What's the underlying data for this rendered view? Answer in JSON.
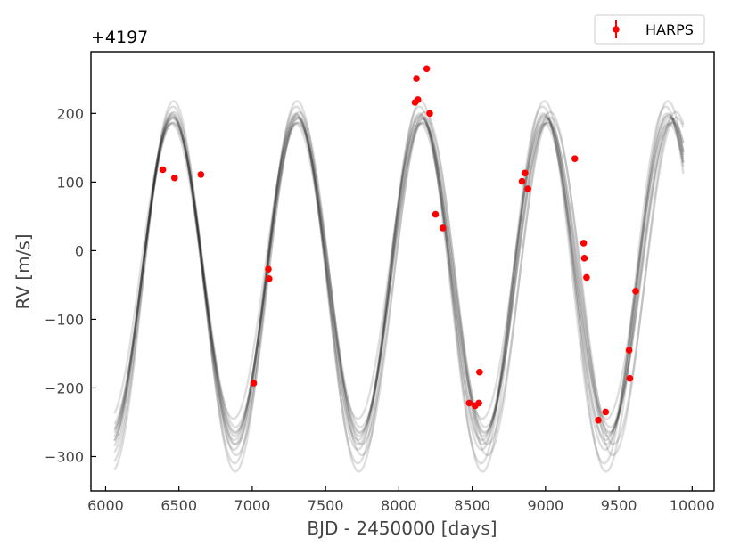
{
  "chart_data": {
    "type": "scatter",
    "offset_label": "+4197",
    "xlabel": "BJD - 2450000 [days]",
    "ylabel": "RV [m/s]",
    "xlim": [
      5900,
      10150
    ],
    "ylim": [
      -350,
      290
    ],
    "x_ticks": [
      6000,
      6500,
      7000,
      7500,
      8000,
      8500,
      9000,
      9500,
      10000
    ],
    "x_tick_labels": [
      "6000",
      "6500",
      "7000",
      "7500",
      "8000",
      "8500",
      "9000",
      "9500",
      "10000"
    ],
    "y_ticks": [
      -300,
      -200,
      -100,
      0,
      100,
      200
    ],
    "y_tick_labels": [
      "−300",
      "−200",
      "−100",
      "0",
      "100",
      "200"
    ],
    "grid": false,
    "legend_position": "top-right",
    "series": [
      {
        "name": "HARPS",
        "kind": "points",
        "color": "#ff0000",
        "x": [
          6390,
          6470,
          6650,
          7010,
          7110,
          7115,
          8110,
          8120,
          8130,
          8190,
          8210,
          8250,
          8300,
          8480,
          8520,
          8545,
          8550,
          8840,
          8860,
          8880,
          9200,
          9260,
          9265,
          9280,
          9360,
          9410,
          9570,
          9575,
          9615
        ],
        "y": [
          118,
          106,
          111,
          -193,
          -27,
          -41,
          216,
          251,
          220,
          265,
          200,
          53,
          33,
          -222,
          -226,
          -222,
          -177,
          101,
          113,
          90,
          134,
          11,
          -11,
          -39,
          -247,
          -235,
          -145,
          -186,
          -59
        ]
      },
      {
        "kind": "model_curves",
        "color": "#000000",
        "x_range": [
          6060,
          9940
        ],
        "samples": [
          {
            "amplitude": 232,
            "offset": -38,
            "period": 848,
            "phase_ref": 7305
          },
          {
            "amplitude": 236,
            "offset": -40,
            "period": 845,
            "phase_ref": 7300
          },
          {
            "amplitude": 228,
            "offset": -36,
            "period": 851,
            "phase_ref": 7310
          },
          {
            "amplitude": 240,
            "offset": -42,
            "period": 846,
            "phase_ref": 7302
          },
          {
            "amplitude": 226,
            "offset": -40,
            "period": 850,
            "phase_ref": 7308
          },
          {
            "amplitude": 245,
            "offset": -45,
            "period": 844,
            "phase_ref": 7298
          },
          {
            "amplitude": 222,
            "offset": -35,
            "period": 852,
            "phase_ref": 7312
          },
          {
            "amplitude": 260,
            "offset": -50,
            "period": 840,
            "phase_ref": 7300
          },
          {
            "amplitude": 250,
            "offset": -48,
            "period": 856,
            "phase_ref": 7320
          },
          {
            "amplitude": 215,
            "offset": -30,
            "period": 848,
            "phase_ref": 7296
          },
          {
            "amplitude": 270,
            "offset": -52,
            "period": 843,
            "phase_ref": 7306
          },
          {
            "amplitude": 238,
            "offset": -44,
            "period": 858,
            "phase_ref": 7318
          }
        ]
      }
    ]
  }
}
